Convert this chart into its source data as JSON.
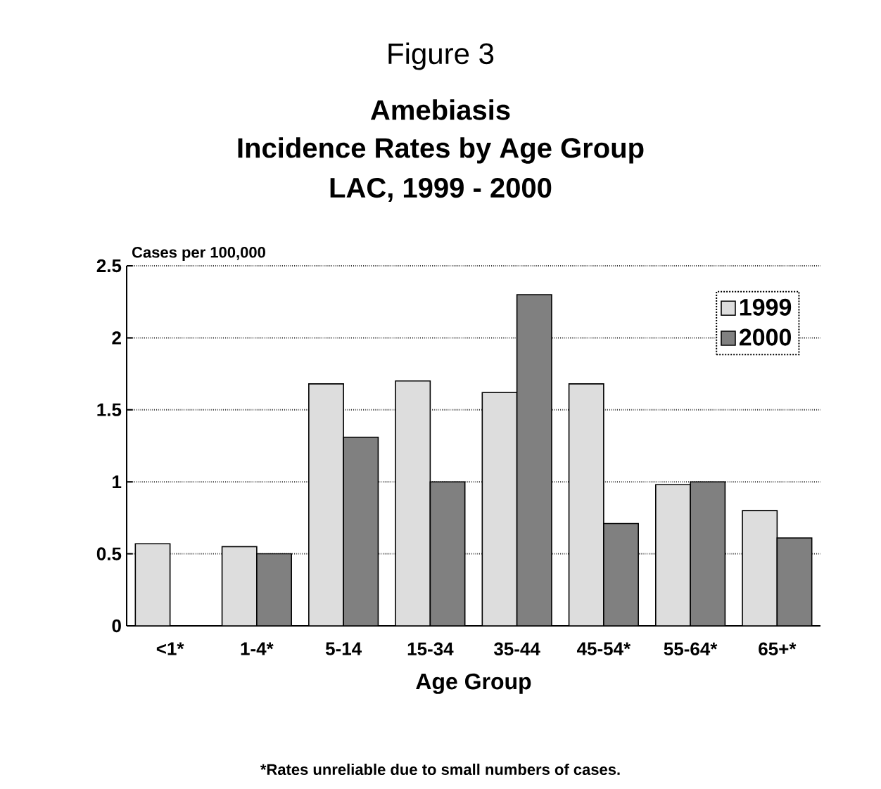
{
  "chart_data": {
    "type": "bar",
    "title": "Figure 3",
    "subtitle": "Amebiasis",
    "annotations": [
      "Incidence Rates by Age Group",
      "LAC, 1999 - 2000",
      "*Rates unreliable due to small numbers of cases."
    ],
    "xlabel": "Age Group",
    "ylabel": "Cases per 100,000",
    "categories": [
      "<1*",
      "1-4*",
      "5-14",
      "15-34",
      "35-44",
      "45-54*",
      "55-64*",
      "65+*"
    ],
    "series": [
      {
        "name": "1999",
        "color": "#dddddd",
        "values": [
          0.57,
          0.55,
          1.68,
          1.7,
          1.62,
          1.68,
          0.98,
          0.8
        ]
      },
      {
        "name": "2000",
        "color": "#808080",
        "values": [
          null,
          0.5,
          1.31,
          1.0,
          2.3,
          0.71,
          1.0,
          0.61
        ]
      }
    ],
    "ylim": [
      0,
      2.5
    ],
    "yticks": [
      0,
      0.5,
      1,
      1.5,
      2,
      2.5
    ],
    "grid": "y",
    "legend": "top right"
  }
}
